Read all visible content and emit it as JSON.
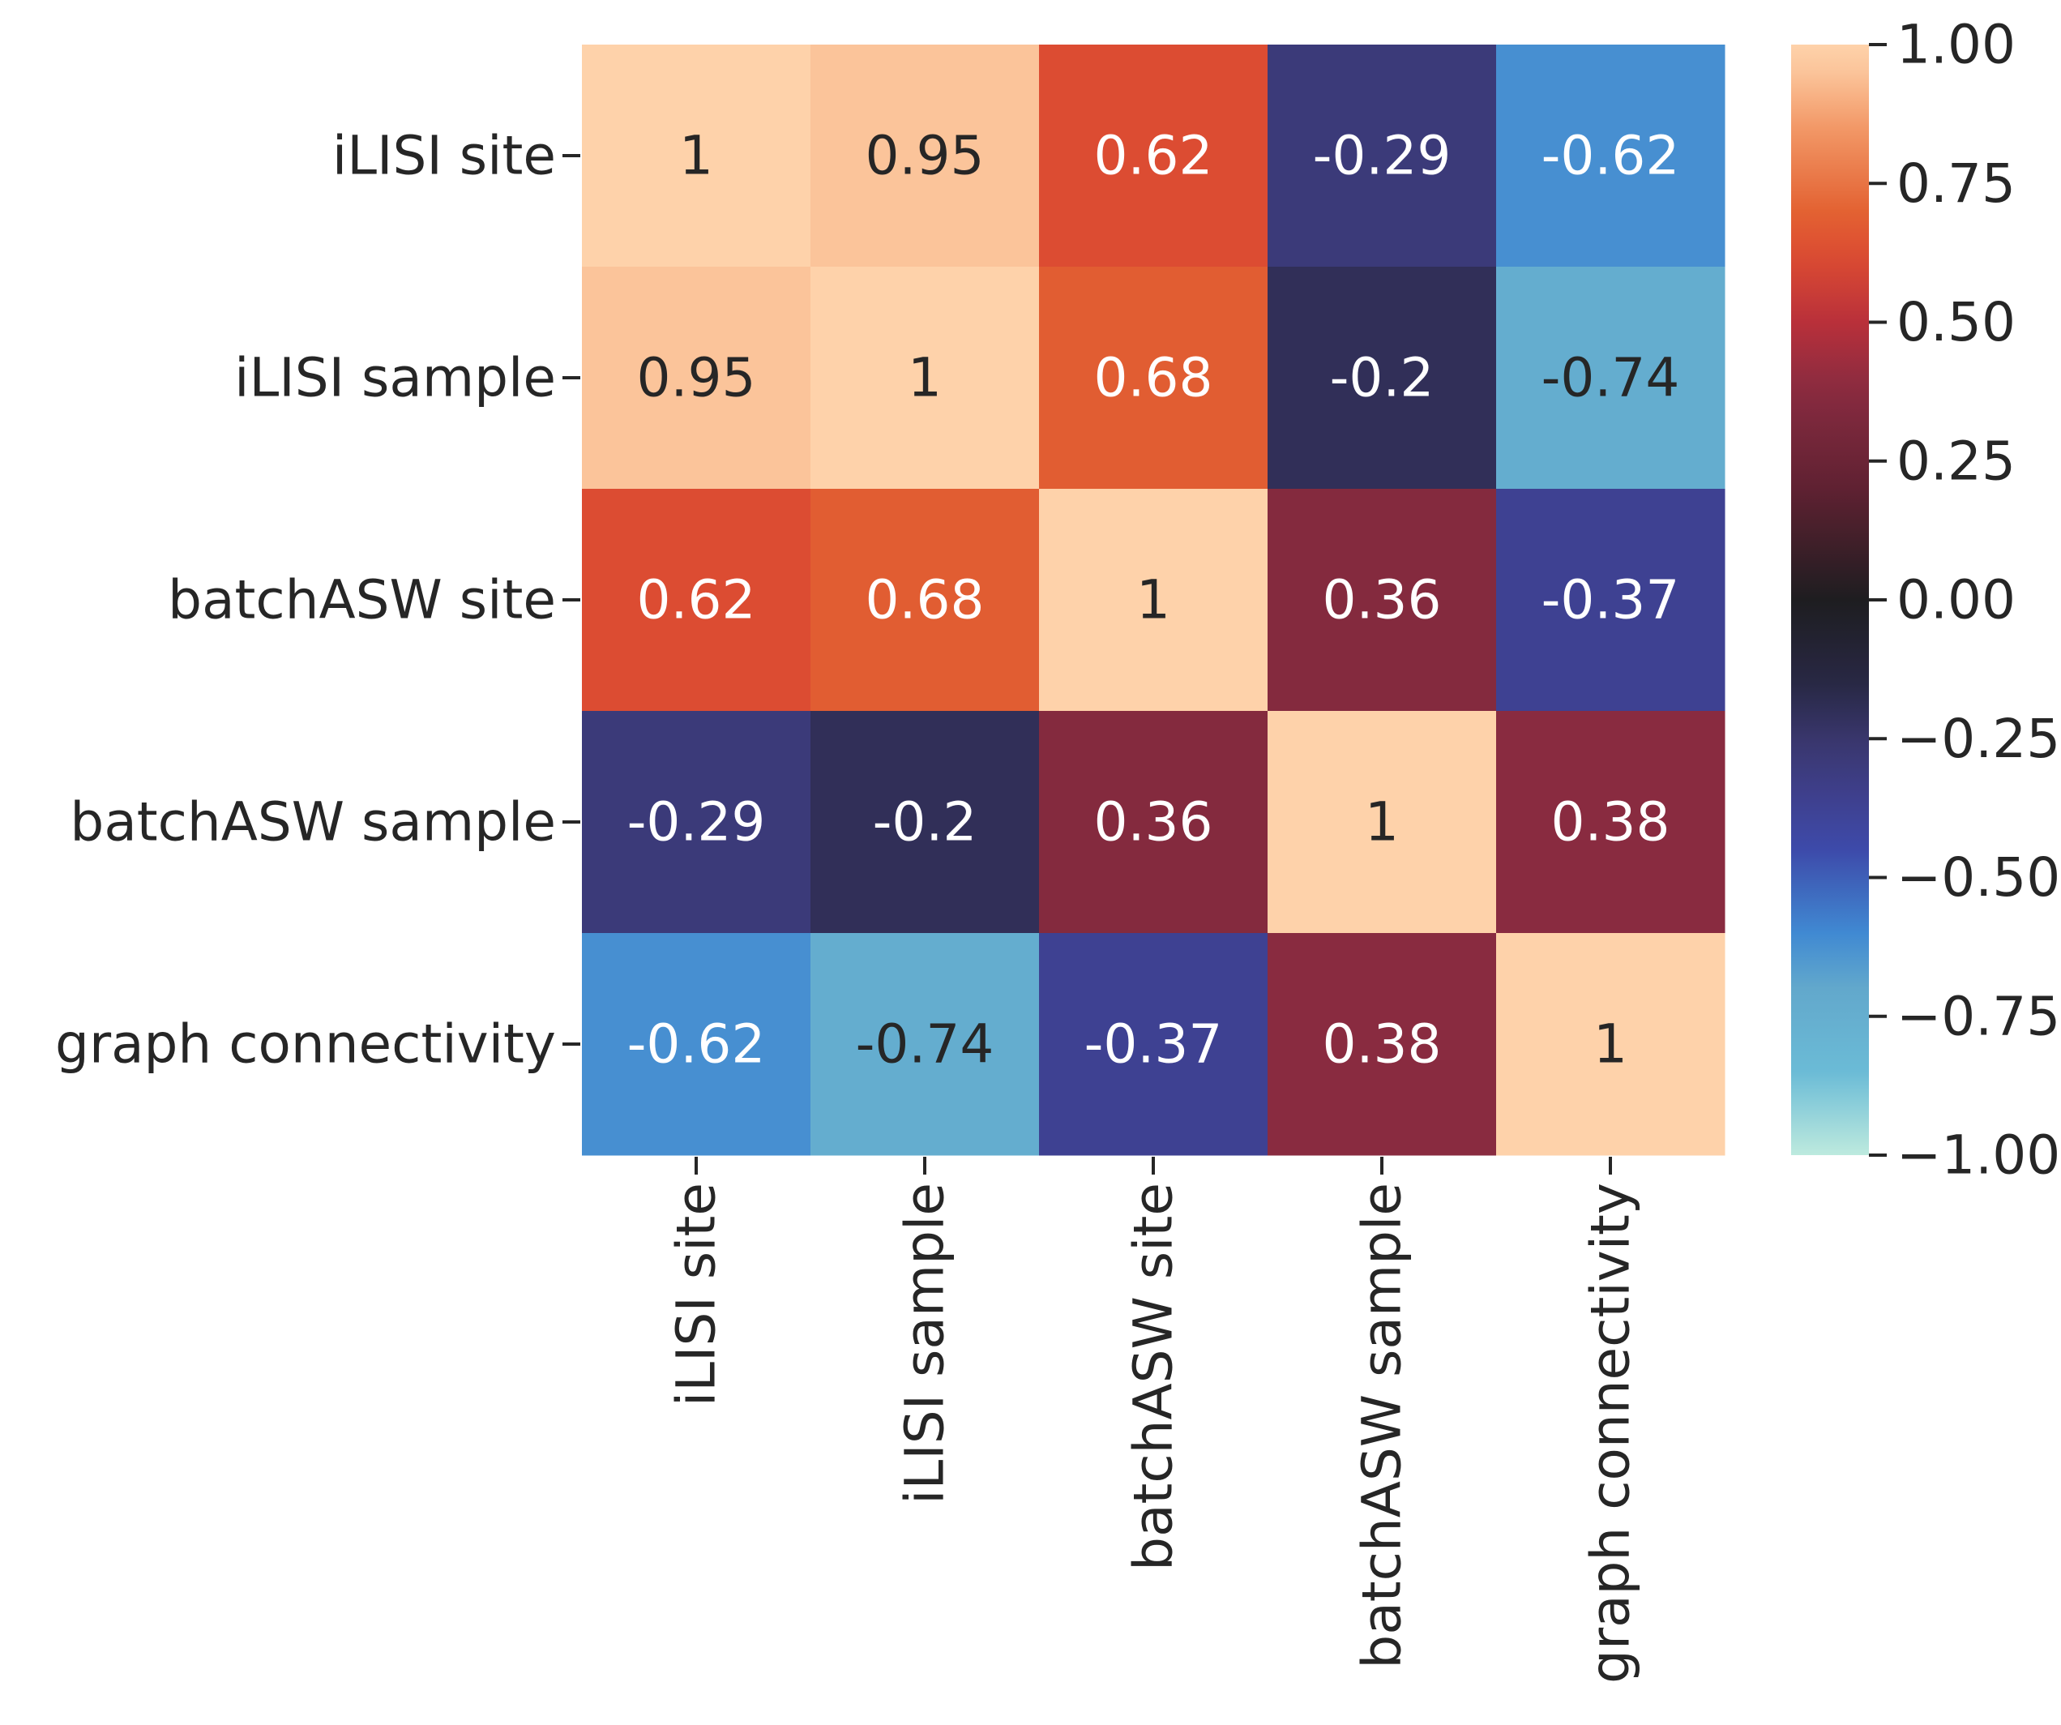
{
  "chart_data": {
    "type": "heatmap",
    "title": "",
    "xlabel": "",
    "ylabel": "",
    "x_categories": [
      "iLISI site",
      "iLISI sample",
      "batchASW site",
      "batchASW sample",
      "graph connectivity"
    ],
    "y_categories": [
      "iLISI site",
      "iLISI sample",
      "batchASW site",
      "batchASW sample",
      "graph connectivity"
    ],
    "values": [
      [
        1,
        0.95,
        0.62,
        -0.29,
        -0.62
      ],
      [
        0.95,
        1,
        0.68,
        -0.2,
        -0.74
      ],
      [
        0.62,
        0.68,
        1,
        0.36,
        -0.37
      ],
      [
        -0.29,
        -0.2,
        0.36,
        1,
        0.38
      ],
      [
        -0.62,
        -0.74,
        -0.37,
        0.38,
        1
      ]
    ],
    "annotations": [
      [
        "1",
        "0.95",
        "0.62",
        "-0.29",
        "-0.62"
      ],
      [
        "0.95",
        "1",
        "0.68",
        "-0.2",
        "-0.74"
      ],
      [
        "0.62",
        "0.68",
        "1",
        "0.36",
        "-0.37"
      ],
      [
        "-0.29",
        "-0.2",
        "0.36",
        "1",
        "0.38"
      ],
      [
        "-0.62",
        "-0.74",
        "-0.37",
        "0.38",
        "1"
      ]
    ],
    "colorbar": {
      "range": [
        -1,
        1
      ],
      "ticks": [
        1,
        0.75,
        0.5,
        0.25,
        0,
        -0.25,
        -0.5,
        -0.75,
        -1
      ],
      "tick_labels": [
        "1.00",
        "0.75",
        "0.50",
        "0.25",
        "0.00",
        "−0.25",
        "−0.50",
        "−0.75",
        "−1.00"
      ],
      "placement": "right",
      "colormap": "icefire"
    }
  }
}
